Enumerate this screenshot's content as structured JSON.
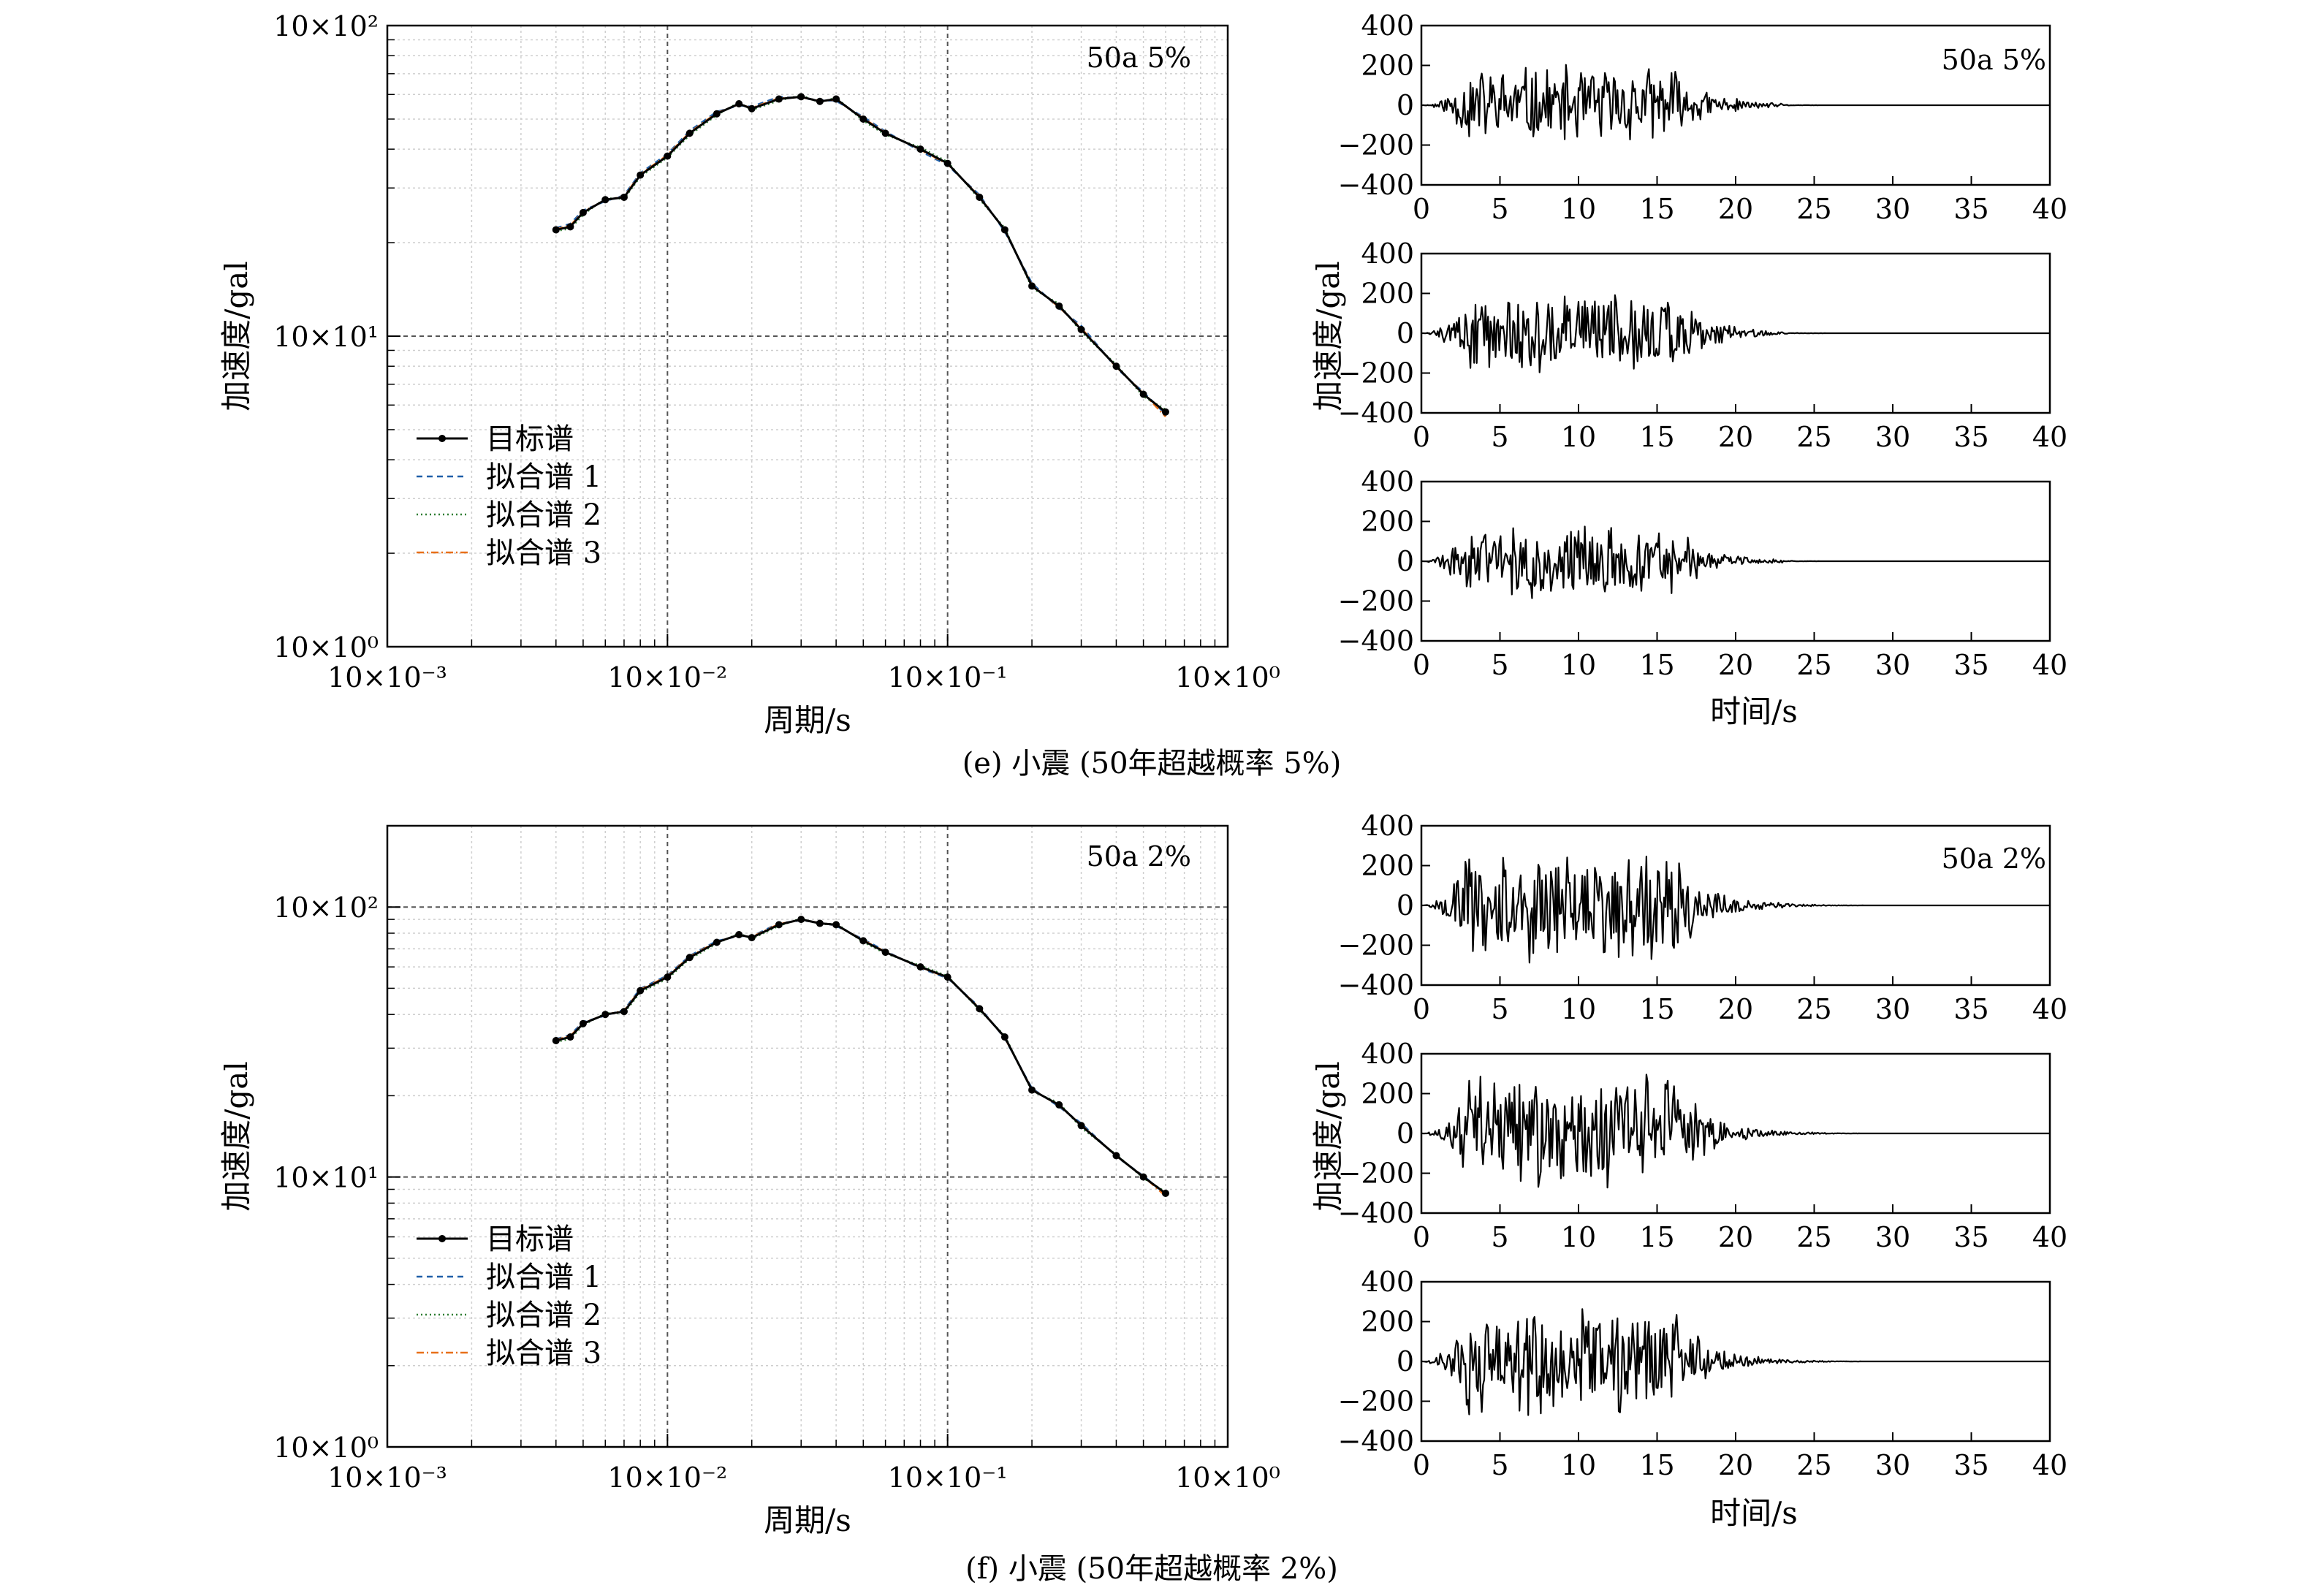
{
  "figures": [
    {
      "caption": "(e) 小震 (50年超越概率 5%)",
      "spectrum_tag": "50a 5%",
      "time_tag": "50a 5%",
      "spectrum_ylabel": "加速度/gal",
      "spectrum_xlabel": "周期/s",
      "time_ylabel": "加速度/gal",
      "time_xlabel": "时间/s"
    },
    {
      "caption": "(f) 小震 (50年超越概率 2%)",
      "spectrum_tag": "50a 2%",
      "time_tag": "50a 2%",
      "spectrum_ylabel": "加速度/gal",
      "spectrum_xlabel": "周期/s",
      "time_ylabel": "加速度/gal",
      "time_xlabel": "时间/s"
    }
  ],
  "legend": [
    "目标谱",
    "拟合谱 1",
    "拟合谱 2",
    "拟合谱 3"
  ],
  "colors": {
    "target": "#000000",
    "fit1": "#1f5fa8",
    "fit2": "#2e7d32",
    "fit3": "#e8701a",
    "grid_major": "#555555",
    "grid_minor": "#cfcfcf",
    "signal": "#000000"
  },
  "chart_data": [
    {
      "type": "line",
      "name": "response-spectrum-e",
      "xscale": "log",
      "yscale": "log",
      "xlabel": "周期/s",
      "ylabel": "加速度/gal",
      "xlim": [
        0.001,
        1.0
      ],
      "ylim": [
        1,
        100
      ],
      "x_ticks": [
        0.001,
        0.01,
        0.1,
        1.0
      ],
      "x_tick_labels": [
        "10×10⁻³",
        "10×10⁻²",
        "10×10⁻¹",
        "10×10⁰"
      ],
      "y_ticks": [
        1,
        10,
        100
      ],
      "y_tick_labels": [
        "10×10⁰",
        "10×10¹",
        "10×10²"
      ],
      "grid": true,
      "legend_position": "lower-left",
      "annotation": "50a 5%",
      "x": [
        0.004,
        0.0045,
        0.005,
        0.006,
        0.007,
        0.008,
        0.01,
        0.012,
        0.015,
        0.018,
        0.02,
        0.025,
        0.03,
        0.035,
        0.04,
        0.05,
        0.06,
        0.08,
        0.1,
        0.13,
        0.16,
        0.2,
        0.25,
        0.3,
        0.4,
        0.5,
        0.6
      ],
      "series": [
        {
          "name": "目标谱",
          "values": [
            22,
            22.5,
            25,
            27.5,
            28,
            33,
            38,
            45,
            52,
            56,
            54,
            58,
            59,
            57,
            58,
            50,
            45,
            40,
            36,
            28,
            22,
            14.5,
            12.5,
            10.5,
            8,
            6.5,
            5.7
          ]
        },
        {
          "name": "拟合谱 1",
          "values": [
            22.3,
            23,
            25.4,
            27.2,
            28.4,
            33.5,
            38.6,
            45.8,
            52.8,
            55.3,
            54.8,
            59,
            58.3,
            57.6,
            57.2,
            50.8,
            45.6,
            39.4,
            35.5,
            28.5,
            21.7,
            14.8,
            12.3,
            10.8,
            7.9,
            6.6,
            5.6
          ]
        },
        {
          "name": "拟合谱 2",
          "values": [
            21.8,
            22.2,
            24.6,
            27.8,
            27.7,
            32.6,
            37.6,
            44.4,
            51.5,
            56.6,
            53.5,
            57.4,
            59.6,
            56.6,
            58.6,
            49.4,
            44.5,
            40.5,
            36.4,
            27.6,
            22.3,
            14.3,
            12.7,
            10.3,
            8.1,
            6.4,
            5.8
          ]
        },
        {
          "name": "拟合谱 3",
          "values": [
            22.1,
            22.7,
            25.2,
            27.4,
            28.2,
            33.2,
            38.3,
            45.3,
            52.3,
            55.8,
            54.3,
            58.4,
            58.7,
            57.3,
            57.6,
            50.3,
            45.2,
            39.8,
            35.8,
            28.2,
            21.9,
            14.6,
            12.4,
            10.6,
            7.95,
            6.55,
            5.5
          ]
        }
      ]
    },
    {
      "type": "line",
      "name": "time-history-e",
      "xlabel": "时间/s",
      "ylabel": "加速度/gal",
      "xlim": [
        0,
        40
      ],
      "ylim": [
        -400,
        400
      ],
      "x_ticks": [
        0,
        5,
        10,
        15,
        20,
        25,
        30,
        35,
        40
      ],
      "y_ticks": [
        -400,
        -200,
        0,
        200,
        400
      ],
      "annotation": "50a 5%",
      "peak_abs": [
        210,
        205,
        190
      ],
      "strong_motion_end_s": 23
    },
    {
      "type": "line",
      "name": "response-spectrum-f",
      "xscale": "log",
      "yscale": "log",
      "xlabel": "周期/s",
      "ylabel": "加速度/gal",
      "xlim": [
        0.001,
        1.0
      ],
      "ylim": [
        1,
        200
      ],
      "x_ticks": [
        0.001,
        0.01,
        0.1,
        1.0
      ],
      "x_tick_labels": [
        "10×10⁻³",
        "10×10⁻²",
        "10×10⁻¹",
        "10×10⁰"
      ],
      "y_ticks": [
        1,
        10,
        100
      ],
      "y_tick_labels": [
        "10×10⁰",
        "10×10¹",
        "10×10²"
      ],
      "grid": true,
      "legend_position": "lower-left",
      "annotation": "50a 2%",
      "x": [
        0.004,
        0.0045,
        0.005,
        0.006,
        0.007,
        0.008,
        0.01,
        0.012,
        0.015,
        0.018,
        0.02,
        0.025,
        0.03,
        0.035,
        0.04,
        0.05,
        0.06,
        0.08,
        0.1,
        0.13,
        0.16,
        0.2,
        0.25,
        0.3,
        0.4,
        0.5,
        0.6
      ],
      "series": [
        {
          "name": "目标谱",
          "values": [
            32,
            33,
            37,
            40,
            41,
            49,
            55,
            65,
            74,
            79,
            77,
            86,
            90,
            87,
            86,
            75,
            68,
            60,
            55,
            42,
            33,
            21,
            18.5,
            15.5,
            12,
            10,
            8.7
          ]
        },
        {
          "name": "拟合谱 1",
          "values": [
            32.4,
            33.6,
            37.5,
            39.6,
            41.6,
            49.8,
            55.8,
            65.9,
            74.9,
            78.1,
            77.8,
            87.2,
            89.1,
            87.9,
            85.1,
            75.9,
            68.7,
            59.3,
            54.5,
            42.6,
            32.6,
            21.3,
            18.2,
            15.8,
            11.9,
            10.1,
            8.6
          ]
        },
        {
          "name": "拟合谱 2",
          "values": [
            31.6,
            32.5,
            36.5,
            40.4,
            40.5,
            48.3,
            54.3,
            64.2,
            73.2,
            79.9,
            76.3,
            85.1,
            90.8,
            86.2,
            86.9,
            74.2,
            67.3,
            60.7,
            55.5,
            41.5,
            33.4,
            20.8,
            18.8,
            15.2,
            12.1,
            9.9,
            8.8
          ]
        },
        {
          "name": "拟合谱 3",
          "values": [
            32.2,
            33.3,
            37.2,
            39.9,
            41.3,
            49.4,
            55.4,
            65.5,
            74.4,
            78.6,
            77.4,
            86.6,
            89.5,
            87.4,
            85.6,
            75.4,
            68.3,
            59.7,
            54.8,
            42.3,
            32.8,
            21.1,
            18.4,
            15.6,
            11.95,
            10.05,
            8.5
          ]
        }
      ]
    },
    {
      "type": "line",
      "name": "time-history-f",
      "xlabel": "时间/s",
      "ylabel": "加速度/gal",
      "xlim": [
        0,
        40
      ],
      "ylim": [
        -400,
        400
      ],
      "x_ticks": [
        0,
        5,
        10,
        15,
        20,
        25,
        30,
        35,
        40
      ],
      "y_ticks": [
        -400,
        -200,
        0,
        200,
        400
      ],
      "annotation": "50a 2%",
      "peak_abs": [
        310,
        300,
        300
      ],
      "strong_motion_end_s": 25
    }
  ]
}
